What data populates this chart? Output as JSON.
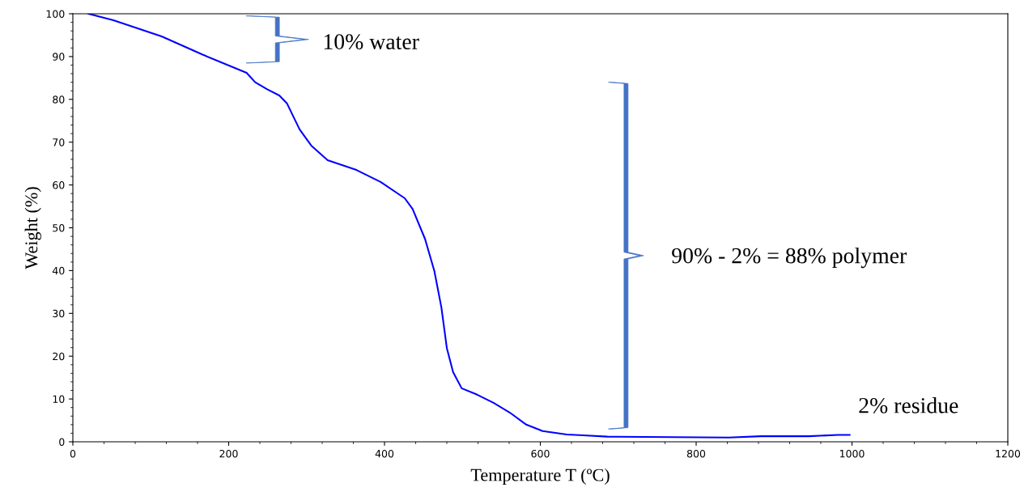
{
  "chart_data": {
    "type": "line",
    "xlabel": "Temperature T (ºC)",
    "ylabel": "Weight (%)",
    "xlim": [
      0,
      1200
    ],
    "ylim": [
      0,
      100
    ],
    "xticks": [
      0,
      200,
      400,
      600,
      800,
      1000,
      1200
    ],
    "yticks": [
      0,
      10,
      20,
      30,
      40,
      50,
      60,
      70,
      80,
      90,
      100
    ],
    "grid": false,
    "legend": false,
    "marker": "none",
    "line_style": "solid",
    "series": [
      {
        "color": "#0000ff",
        "x": [
          20,
          52,
          114,
          166,
          223,
          234,
          249,
          265,
          275,
          291,
          306,
          327,
          364,
          395,
          426,
          436,
          452,
          464,
          473,
          480,
          488,
          499,
          519,
          540,
          561,
          582,
          603,
          634,
          655,
          686,
          842,
          883,
          945,
          982,
          997
        ],
        "values": [
          100,
          98.5,
          94.7,
          90.5,
          86.2,
          84,
          82.4,
          80.9,
          79,
          73,
          69.2,
          65.8,
          63.5,
          60.7,
          56.9,
          54.4,
          47.4,
          39.9,
          31.4,
          21.9,
          16.3,
          12.5,
          11,
          9.1,
          6.8,
          4,
          2.5,
          1.7,
          1.5,
          1.2,
          1.0,
          1.3,
          1.3,
          1.6,
          1.6
        ]
      }
    ],
    "annotations": [
      "10% water",
      "90% - 2% = 88% polymer",
      "2% residue"
    ]
  }
}
